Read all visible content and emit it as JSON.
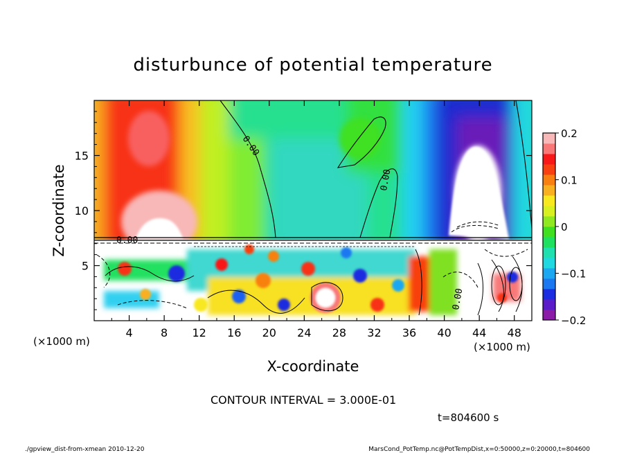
{
  "chart_data": {
    "type": "heatmap",
    "title": "disturbunce of potential temperature",
    "xlabel": "X-coordinate",
    "ylabel": "Z-coordinate",
    "x_unit": "(×1000 m)",
    "y_unit": "(×1000 m)",
    "xlim": [
      0,
      50
    ],
    "ylim": [
      0,
      20
    ],
    "x_ticks": [
      4,
      8,
      12,
      16,
      20,
      24,
      28,
      32,
      36,
      40,
      44,
      48
    ],
    "y_ticks": [
      5,
      10,
      15
    ],
    "colorbar": {
      "ticks": [
        0.2,
        0.1,
        0,
        -0.1,
        -0.2
      ],
      "tick_labels": [
        "0.2",
        "0.1",
        "0",
        "−0.1",
        "−0.2"
      ],
      "range": [
        -0.2,
        0.2
      ],
      "colors": [
        "#8a1ca8",
        "#5a1cc8",
        "#1c2ce0",
        "#1c78f0",
        "#1ca8f0",
        "#20d8e0",
        "#20e0b0",
        "#20e060",
        "#40e020",
        "#90e820",
        "#d8f020",
        "#f8e820",
        "#f8b020",
        "#f88010",
        "#f84010",
        "#f81818",
        "#f87878",
        "#f8b8b8"
      ]
    },
    "contour_labels": [
      "0.00",
      "0.00",
      "0.00",
      "0.00"
    ],
    "contour_interval_text": "CONTOUR INTERVAL = 3.000E-01",
    "time_text": "t=804600 s",
    "grid": false
  },
  "footer": {
    "left": "./gpview_dist-from-xmean  2010-12-20",
    "right": "MarsCond_PotTemp.nc@PotTempDist,x=0:50000,z=0:20000,t=804600"
  }
}
